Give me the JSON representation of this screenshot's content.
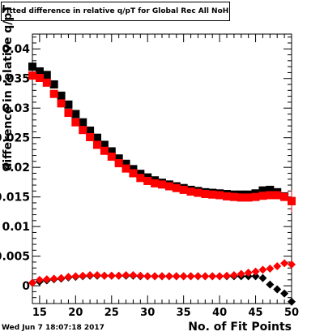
{
  "title": "Fitted difference in relative q/pT for Global Rec All NoHits",
  "footer_date": "Wed Jun  7 18:07:18 2017",
  "chart_data": {
    "type": "scatter",
    "title": "Fitted difference in relative q/pT for Global Rec All NoHits",
    "xlabel": "No. of Fit Points",
    "ylabel": "difference in relative q/pT",
    "xlim": [
      14,
      50
    ],
    "ylim": [
      -0.003,
      0.0425
    ],
    "x_ticks": [
      "15",
      "20",
      "25",
      "30",
      "35",
      "40",
      "45",
      "50"
    ],
    "y_ticks": [
      "0",
      "0.005",
      "0.01",
      "0.015",
      "0.02",
      "0.025",
      "0.03",
      "0.035",
      "0.04"
    ],
    "x": [
      14,
      15,
      16,
      17,
      18,
      19,
      20,
      21,
      22,
      23,
      24,
      25,
      26,
      27,
      28,
      29,
      30,
      31,
      32,
      33,
      34,
      35,
      36,
      37,
      38,
      39,
      40,
      41,
      42,
      43,
      44,
      45,
      46,
      47,
      48,
      49,
      50
    ],
    "series": [
      {
        "marker": "square",
        "color": "#000000",
        "values": [
          0.037,
          0.0362,
          0.0356,
          0.034,
          0.0321,
          0.0306,
          0.029,
          0.0276,
          0.0262,
          0.025,
          0.0238,
          0.0227,
          0.0215,
          0.0206,
          0.0197,
          0.0189,
          0.0183,
          0.0178,
          0.0174,
          0.0171,
          0.0168,
          0.0165,
          0.0162,
          0.016,
          0.0158,
          0.0157,
          0.0156,
          0.0155,
          0.0154,
          0.0154,
          0.0154,
          0.0156,
          0.0161,
          0.0162,
          0.0158,
          0.0151,
          0.0143
        ]
      },
      {
        "marker": "square",
        "color": "#ff0000",
        "values": [
          0.0355,
          0.0351,
          0.0343,
          0.0324,
          0.0308,
          0.0292,
          0.0276,
          0.0263,
          0.0251,
          0.0238,
          0.0228,
          0.0218,
          0.0207,
          0.0198,
          0.019,
          0.0182,
          0.0177,
          0.0173,
          0.0171,
          0.0168,
          0.0165,
          0.0162,
          0.0159,
          0.0157,
          0.0155,
          0.0154,
          0.0153,
          0.0151,
          0.015,
          0.0149,
          0.0149,
          0.015,
          0.0152,
          0.0153,
          0.0153,
          0.015,
          0.0143
        ]
      },
      {
        "marker": "diamond",
        "color": "#000000",
        "values": [
          0.0005,
          0.0007,
          0.0009,
          0.0011,
          0.0012,
          0.0014,
          0.0015,
          0.0016,
          0.0017,
          0.0017,
          0.0017,
          0.0017,
          0.0017,
          0.0017,
          0.0017,
          0.0016,
          0.0016,
          0.0016,
          0.0016,
          0.0016,
          0.0016,
          0.0016,
          0.0016,
          0.0016,
          0.0016,
          0.0016,
          0.0016,
          0.0016,
          0.0016,
          0.0016,
          0.0016,
          0.0016,
          0.0013,
          0.0002,
          -0.0006,
          -0.0013,
          -0.0027
        ]
      },
      {
        "marker": "diamond",
        "color": "#ff0000",
        "values": [
          0.0005,
          0.001,
          0.0011,
          0.0012,
          0.0013,
          0.0015,
          0.0016,
          0.0017,
          0.0018,
          0.0018,
          0.0017,
          0.0017,
          0.0017,
          0.0018,
          0.0018,
          0.0017,
          0.0016,
          0.0016,
          0.0016,
          0.0016,
          0.0016,
          0.0016,
          0.0016,
          0.0016,
          0.0016,
          0.0016,
          0.0016,
          0.0017,
          0.0018,
          0.002,
          0.0022,
          0.0024,
          0.0027,
          0.0029,
          0.0033,
          0.0038,
          0.0036
        ]
      }
    ]
  }
}
